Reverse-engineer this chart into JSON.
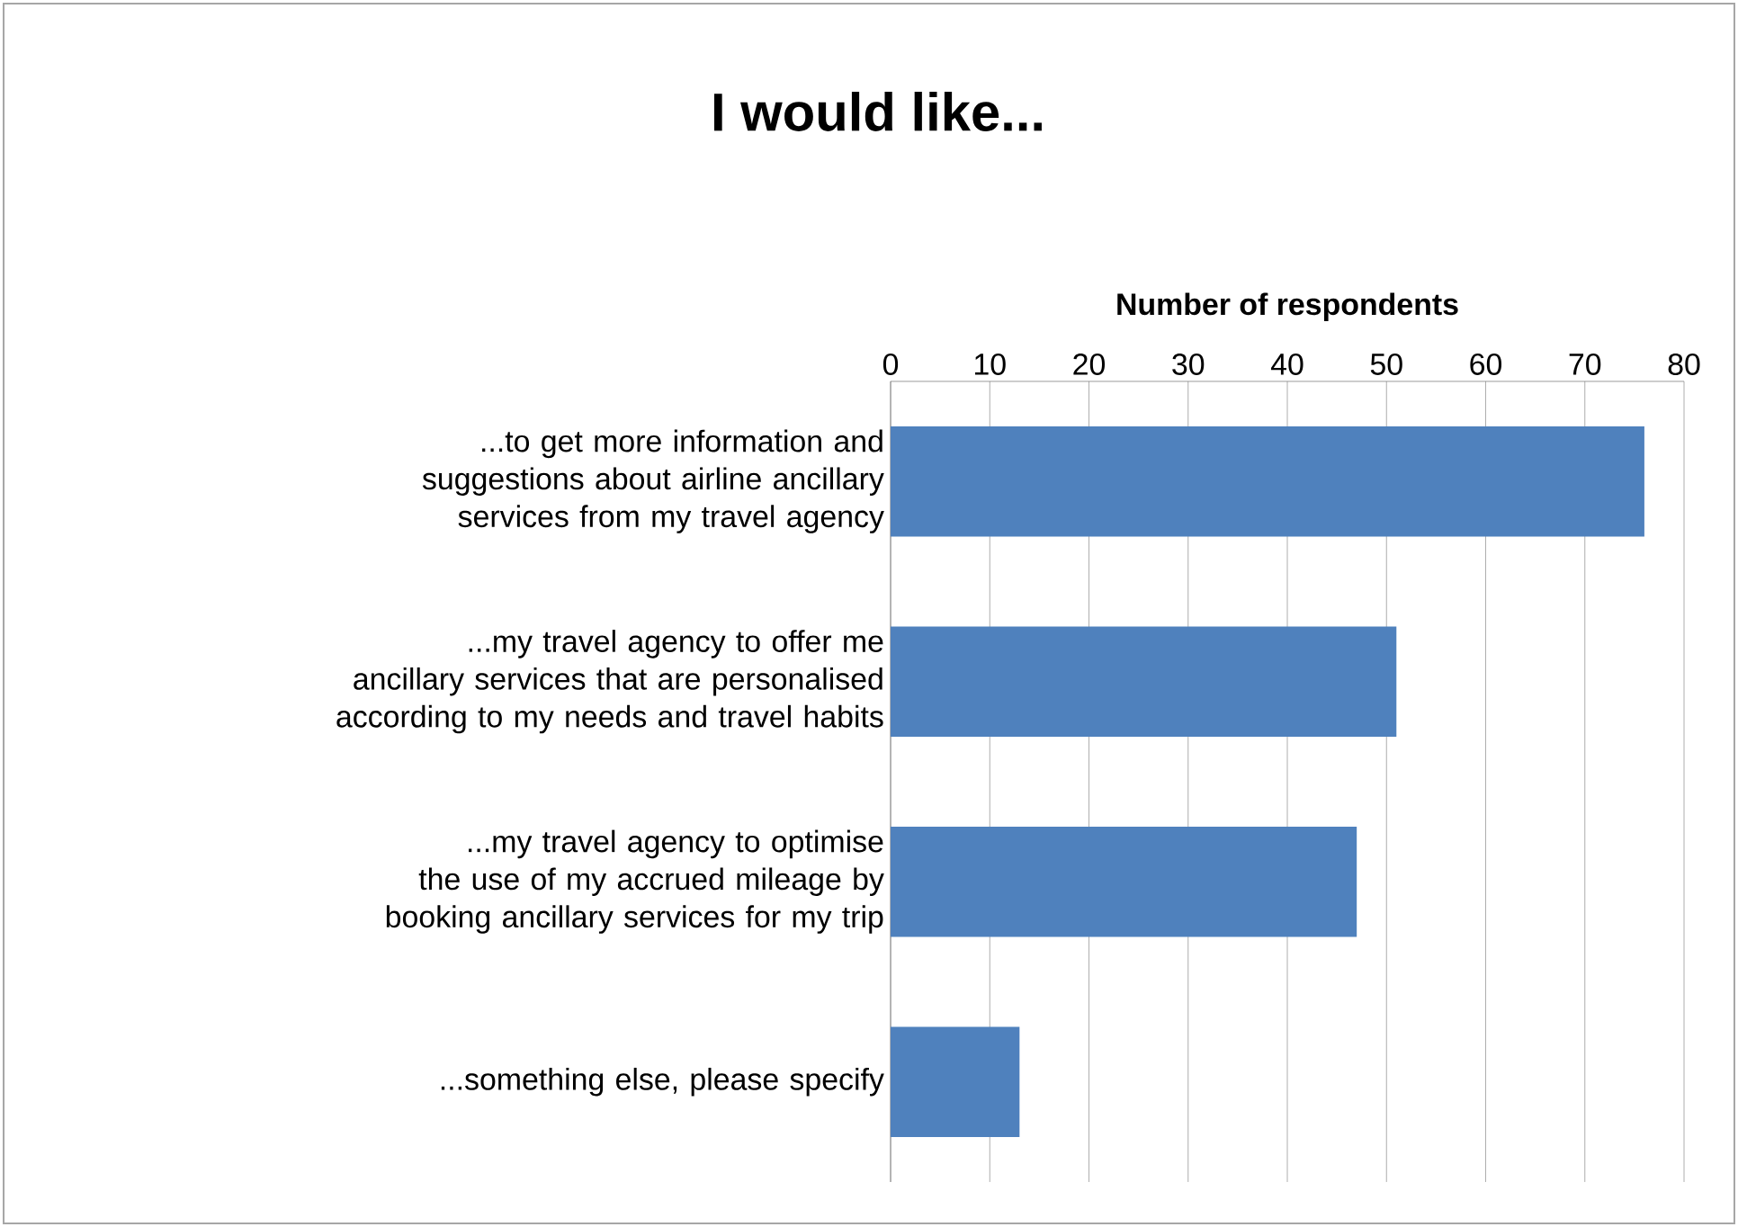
{
  "chart_data": {
    "type": "bar",
    "orientation": "horizontal",
    "title": "I would like...",
    "xlabel": "Number of respondents",
    "categories": [
      "...to get more information and suggestions about airline ancillary services from my travel agency",
      "...my travel agency to offer me ancillary services that are personalised according to my needs and travel habits",
      "...my travel agency to optimise the use of my accrued mileage by booking ancillary services for my trip",
      "...something else, please specify"
    ],
    "values": [
      76,
      51,
      47,
      13
    ],
    "color": "#4f81bd",
    "xlim": [
      0,
      80
    ],
    "xticks": [
      0,
      10,
      20,
      30,
      40,
      50,
      60,
      70,
      80
    ],
    "grid": "x"
  }
}
